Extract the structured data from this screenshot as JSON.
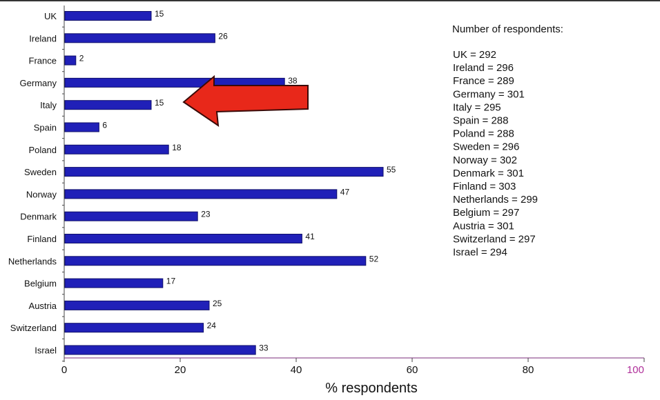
{
  "chart_data": {
    "type": "bar",
    "orientation": "horizontal",
    "categories": [
      "UK",
      "Ireland",
      "France",
      "Germany",
      "Italy",
      "Spain",
      "Poland",
      "Sweden",
      "Norway",
      "Denmark",
      "Finland",
      "Netherlands",
      "Belgium",
      "Austria",
      "Switzerland",
      "Israel"
    ],
    "values": [
      15,
      26,
      2,
      38,
      15,
      6,
      18,
      55,
      47,
      23,
      41,
      52,
      17,
      25,
      24,
      33
    ],
    "value_labels": [
      "15",
      "26",
      "2",
      "38",
      "15",
      "6",
      "18",
      "55",
      "47",
      "23",
      "41",
      "52",
      "17",
      "25",
      "24",
      "33"
    ],
    "xlabel": "% respondents",
    "xlim": [
      0,
      100
    ],
    "x_ticks": [
      0,
      20,
      40,
      60,
      80,
      100
    ],
    "x_tick_labels": [
      "0",
      "20",
      "40",
      "60",
      "80",
      "100"
    ],
    "grid": false,
    "bar_color": "#2020b8",
    "last_tick_color": "#b0309a",
    "annotation": {
      "type": "arrow",
      "color": "#e8281a",
      "points_to": "Italy"
    },
    "note": {
      "title": "Number of respondents:",
      "lines": [
        "UK = 292",
        "Ireland = 296",
        "France = 289",
        "Germany = 301",
        "Italy = 295",
        "Spain = 288",
        "Poland = 288",
        "Sweden = 296",
        "Norway = 302",
        "Denmark = 301",
        "Finland = 303",
        "Netherlands = 299",
        "Belgium = 297",
        "Austria = 301",
        "Switzerland = 297",
        "Israel = 294"
      ]
    }
  }
}
